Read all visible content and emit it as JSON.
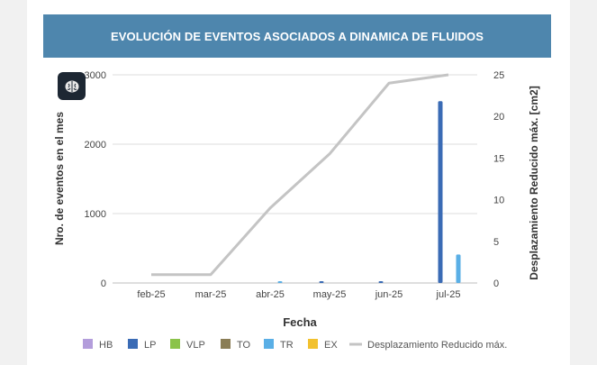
{
  "title": "EVOLUCIÓN DE EVENTOS ASOCIADOS A DINAMICA DE FLUIDOS",
  "chart_data": {
    "type": "bar",
    "title": "EVOLUCIÓN DE EVENTOS ASOCIADOS A DINAMICA DE FLUIDOS",
    "xlabel": "Fecha",
    "ylabel": "Nro. de eventos en el mes",
    "y2label": "Desplazamiento Reducido máx. [cm2]",
    "categories": [
      "feb-25",
      "mar-25",
      "abr-25",
      "may-25",
      "jun-25",
      "jul-25"
    ],
    "ylim": [
      0,
      3000
    ],
    "y2lim": [
      0,
      25
    ],
    "yticks": [
      0,
      1000,
      2000,
      3000
    ],
    "y2ticks": [
      0,
      5,
      10,
      15,
      20,
      25
    ],
    "grid": true,
    "legend_position": "bottom",
    "series": [
      {
        "name": "HB",
        "color": "#b39ddb",
        "values": [
          0,
          0,
          0,
          0,
          0,
          0
        ]
      },
      {
        "name": "LP",
        "color": "#3a6bb5",
        "values": [
          0,
          0,
          0,
          25,
          25,
          2620
        ]
      },
      {
        "name": "VLP",
        "color": "#8bc34a",
        "values": [
          0,
          0,
          0,
          0,
          0,
          0
        ]
      },
      {
        "name": "TO",
        "color": "#8a7d55",
        "values": [
          0,
          0,
          0,
          0,
          0,
          0
        ]
      },
      {
        "name": "TR",
        "color": "#5aafe6",
        "values": [
          0,
          0,
          5,
          0,
          0,
          410
        ]
      },
      {
        "name": "EX",
        "color": "#f2c12e",
        "values": [
          0,
          0,
          0,
          0,
          0,
          0
        ]
      },
      {
        "name": "Desplazamiento Reducido máx.",
        "color": "#c4c4c4",
        "type": "line",
        "axis": "right",
        "values": [
          1.0,
          1.0,
          9.0,
          15.5,
          24.0,
          25.0
        ]
      }
    ]
  }
}
